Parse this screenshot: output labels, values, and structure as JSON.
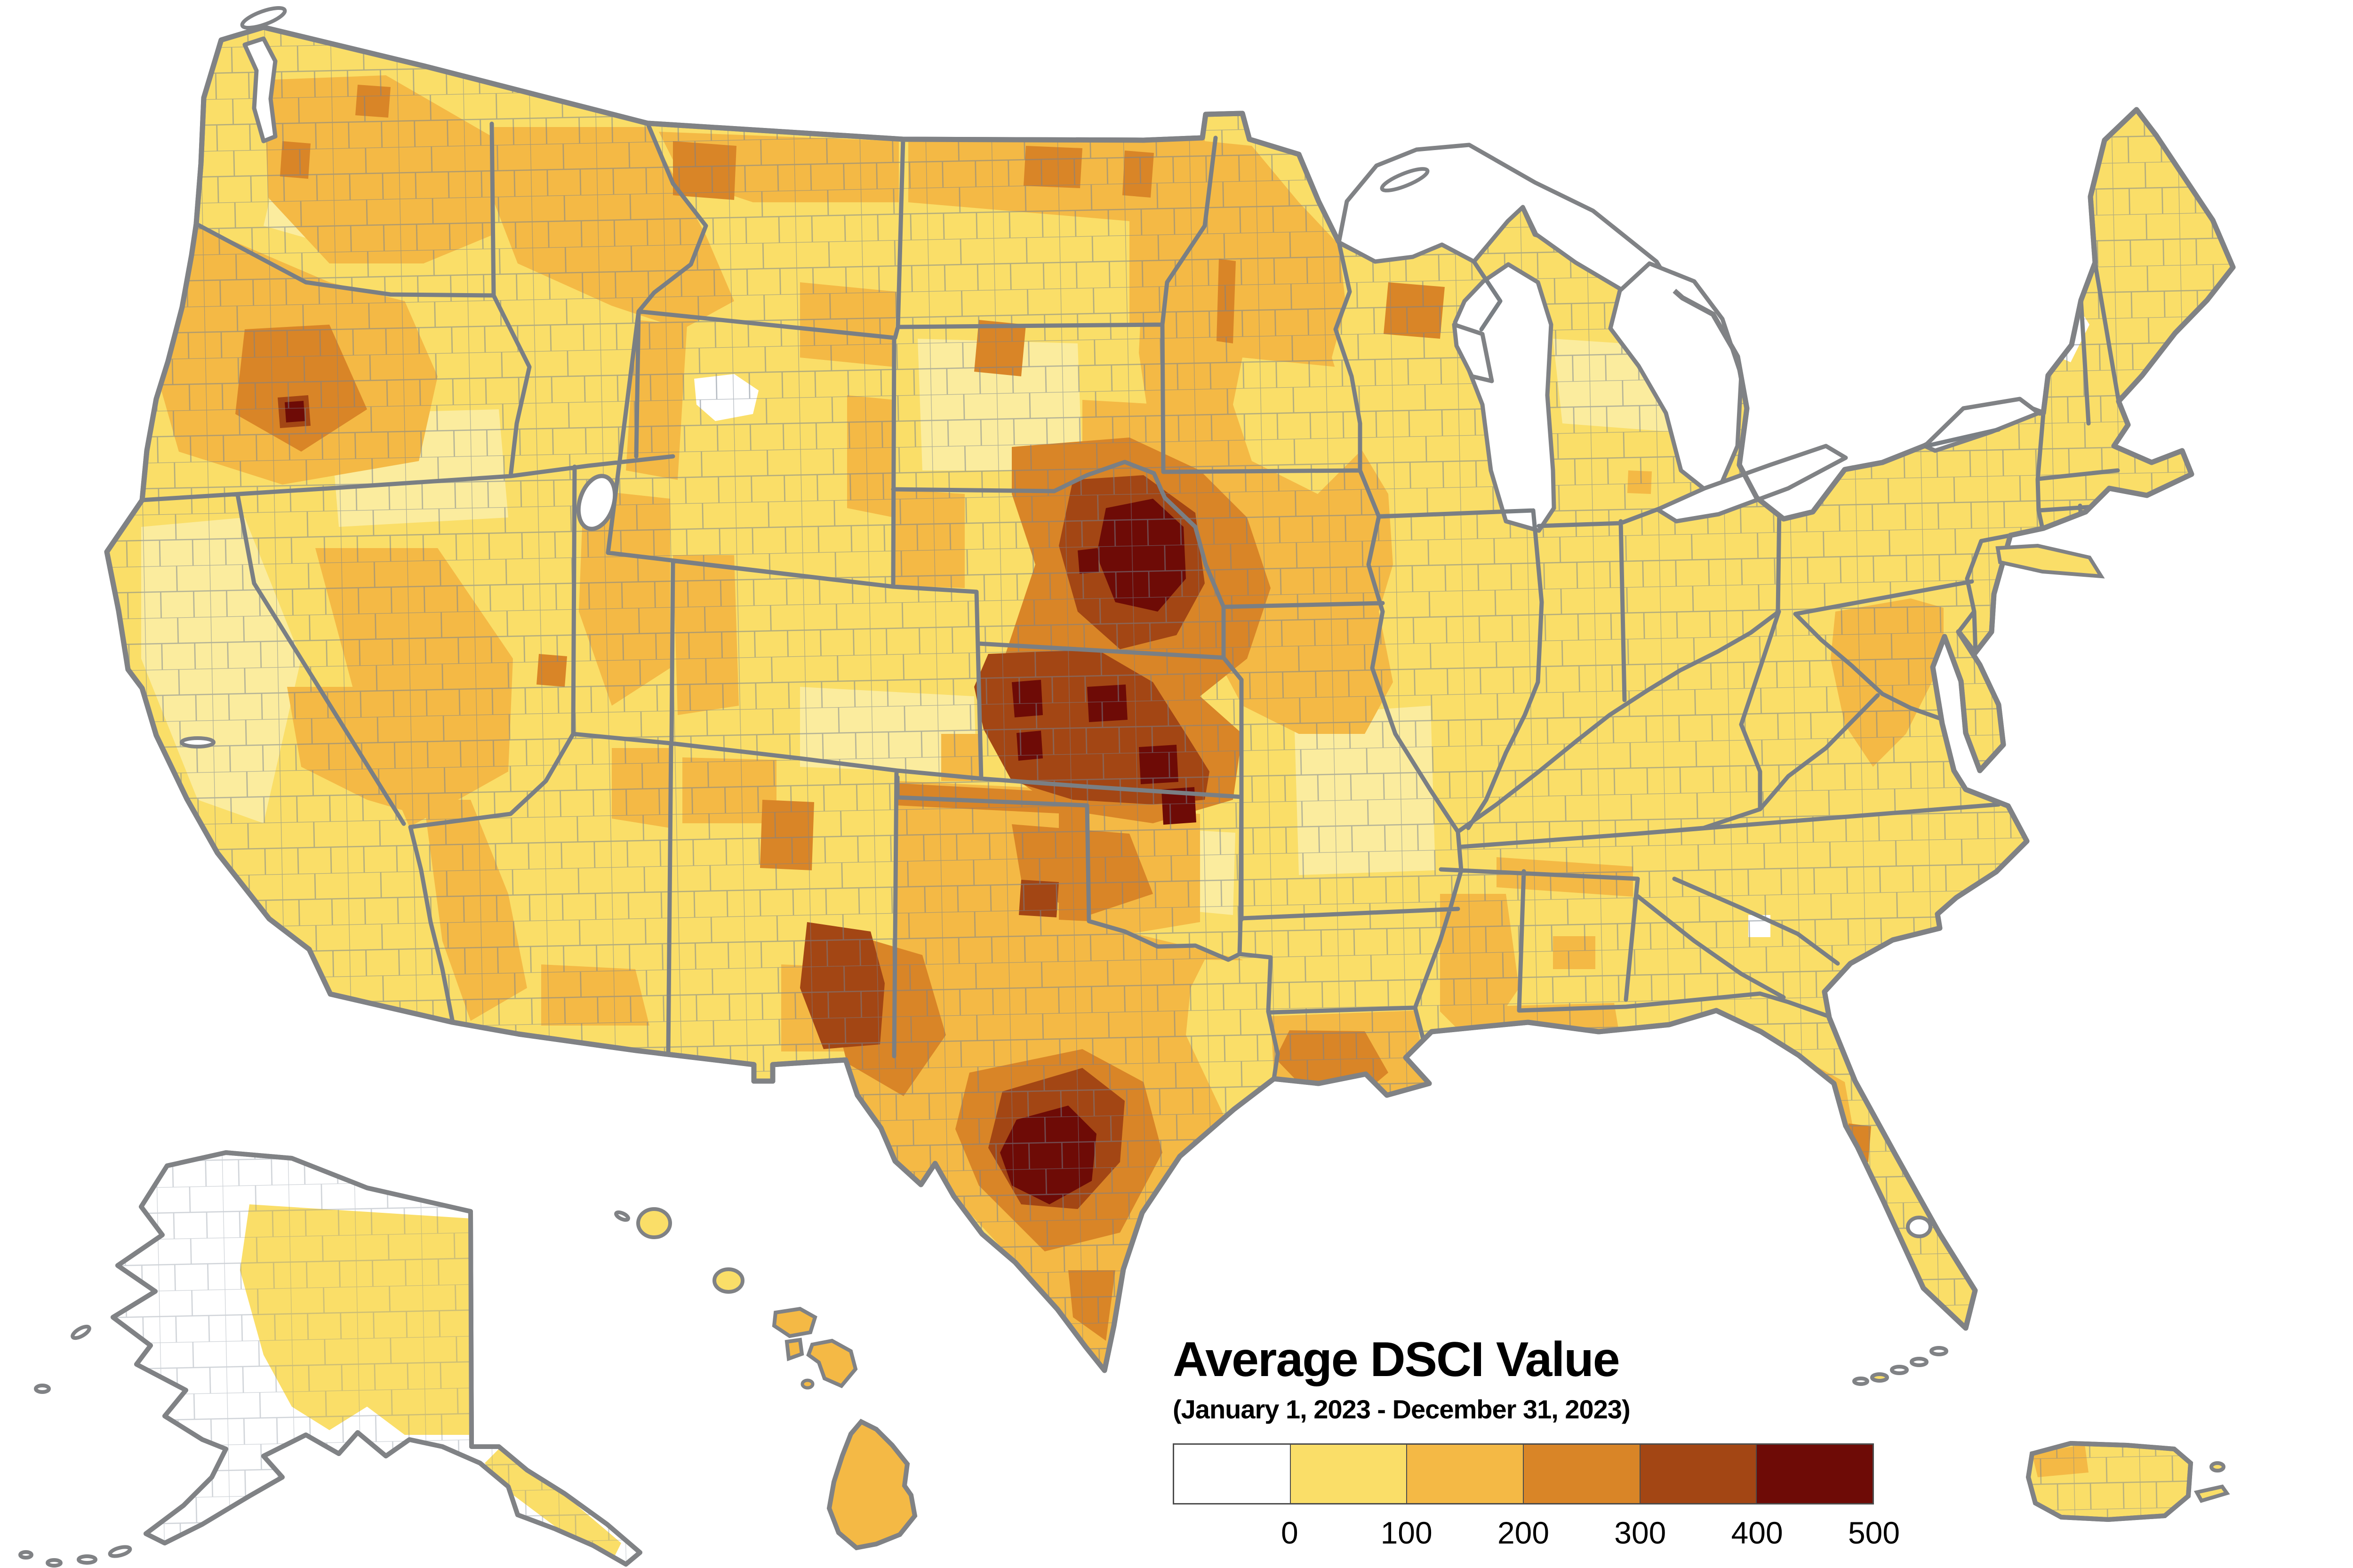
{
  "map": {
    "title": "Average DSCI Value",
    "subtitle": "(January 1, 2023 - December 31, 2023)",
    "type": "choropleth",
    "geography": "United States counties (contiguous US with Alaska, Hawaii and Puerto Rico insets)",
    "legend": {
      "bins": [
        {
          "label": "under 0 / no drought",
          "color": "#FFFFFF"
        },
        {
          "label": "0-100",
          "color": "#FADE68"
        },
        {
          "label": "100-200",
          "color": "#F4B945"
        },
        {
          "label": "200-300",
          "color": "#D98527"
        },
        {
          "label": "300-400",
          "color": "#A34614"
        },
        {
          "label": "400-500",
          "color": "#6E0B06"
        }
      ],
      "ticks": [
        "0",
        "100",
        "200",
        "300",
        "400",
        "500"
      ],
      "scale_min": 0,
      "scale_max": 500
    },
    "colors": {
      "background": "#FFFFFF",
      "county_line": "#76818F",
      "state_line": "#7A7F84",
      "coastline": "#808285",
      "pale_yellow_variant": "#FBEC9E"
    },
    "regions_by_dsci": {
      "400_500": [
        "East-central Nebraska cluster",
        "North-central and south-central Kansas counties",
        "Texas Hill Country around Austin",
        "Single county in north-central Oregon"
      ],
      "300_400": [
        "Eastern Nebraska ring",
        "Large north-central and southwest Kansas area",
        "Ring around Texas Hill Country",
        "Davis Mountains / Big Bend area of west Texas",
        "Two counties in central Oklahoma",
        "County cluster in central Oregon"
      ],
      "200_300": [
        "Western Iowa and northwest Missouri ring",
        "Eastern Nebraska / northeast Kansas",
        "North-central Montana",
        "Central Oregon",
        "South-central Louisiana",
        "Central Oklahoma patches",
        "Ring around central Texas",
        "Two counties on northern North Dakota border",
        "West-central Minnesota counties",
        "One county on Florida gulf coast",
        "Southwest Utah county"
      ],
      "100_200": [
        "Eastern Washington",
        "Most of Oregon",
        "Northern Idaho and western Montana",
        "Northern and eastern North Dakota",
        "Minnesota and western Wisconsin",
        "Iowa, northern Missouri, western Illinois",
        "Central Utah and western Colorado",
        "Southern Nevada and southeast California",
        "Western and southern Arizona patches",
        "Eastern New Mexico",
        "Most of western and southern Texas",
        "Western Oklahoma",
        "Louisiana and central Mississippi",
        "West Tennessee / north Mississippi border strip",
        "Northern Virginia Blue Ridge patch",
        "Florida west coast strip",
        "Hawaiian islands except Kauai",
        "Northwest Puerto Rico municipios"
      ],
      "0_100": [
        "California",
        "Great Basin",
        "Rocky Mountain states majority",
        "Great Plains remainder",
        "Midwest and Great Lakes states",
        "Northeast",
        "Southeast and Appalachia",
        "Most of Florida and Gulf coast",
        "Interior and southeast Alaska",
        "Kauai",
        "Most of Puerto Rico"
      ],
      "below_0_white": [
        "Western and northern Alaska",
        "Mid-coast Maine counties",
        "One county in northern Wyoming",
        "One county in north Georgia",
        "Great Salt Lake and Great Lakes water bodies"
      ]
    },
    "insets": [
      "Alaska",
      "Hawaii",
      "Puerto Rico"
    ]
  }
}
